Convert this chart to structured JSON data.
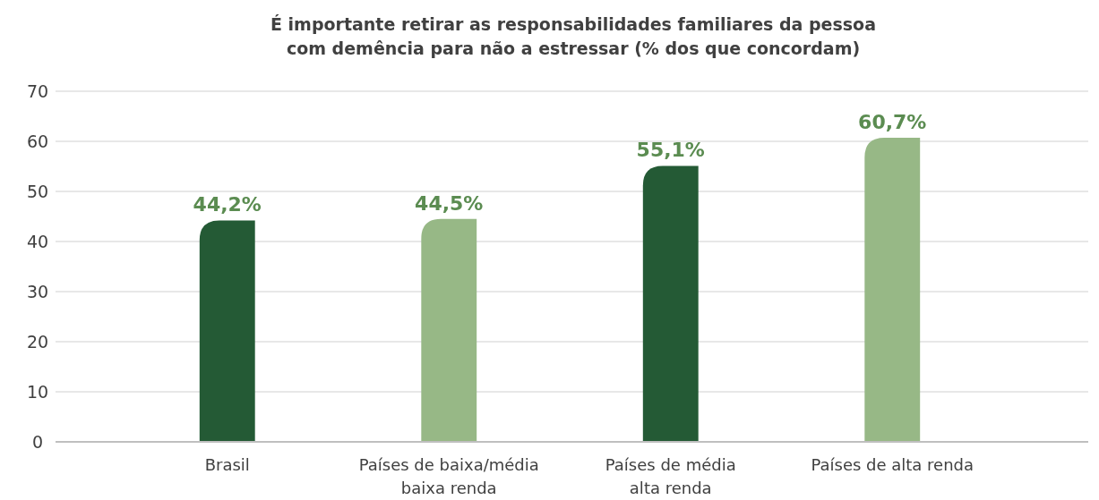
{
  "chart_data": {
    "type": "bar",
    "title": "É importante retirar as responsabilidades familiares da pessoa com demência para não a estressar (% dos que concordam)",
    "categories": [
      "Brasil",
      "Países de baixa/média baixa renda",
      "Países de média alta renda",
      "Países de alta renda"
    ],
    "values": [
      44.2,
      44.5,
      55.1,
      60.7
    ],
    "colors": [
      "#245a35",
      "#97b886",
      "#245a35",
      "#97b886"
    ],
    "value_labels": [
      "44,2%",
      "44,5%",
      "55,1%",
      "60,7%"
    ],
    "ylim": [
      0,
      70
    ],
    "yticks": [
      0,
      10,
      20,
      30,
      40,
      50,
      60,
      70
    ],
    "grid": "y"
  }
}
